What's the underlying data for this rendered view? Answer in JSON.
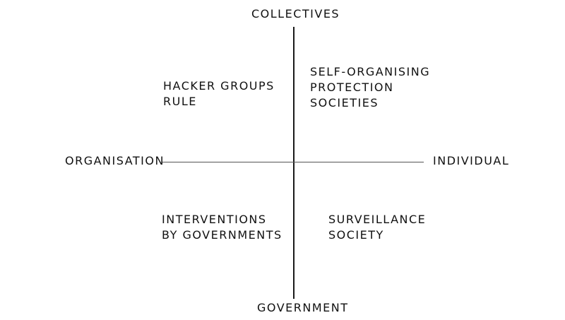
{
  "axes": {
    "top": "COLLECTIVES",
    "bottom": "GOVERNMENT",
    "left": "ORGANISATION",
    "right": "INDIVIDUAL"
  },
  "quadrants": {
    "top_left": [
      "HACKER GROUPS",
      "RULE"
    ],
    "top_right": [
      "SELF-ORGANISING",
      "PROTECTION",
      "SOCIETIES"
    ],
    "bottom_left": [
      "INTERVENTIONS",
      "BY GOVERNMENTS"
    ],
    "bottom_right": [
      "SURVEILLANCE",
      "SOCIETY"
    ]
  }
}
